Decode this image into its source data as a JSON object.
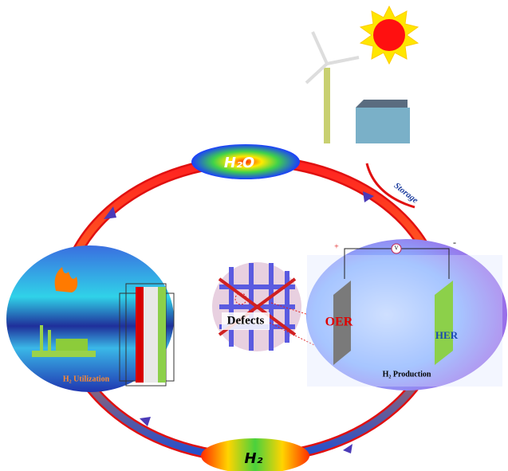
{
  "cycle": {
    "top_node": "H₂O",
    "bottom_node": "H₂",
    "storage": "Storage"
  },
  "utilization": {
    "label": "H₂ Utilization"
  },
  "defects": {
    "label": "Defects"
  },
  "production": {
    "label": "H₂ Production",
    "anode": "OER",
    "cathode": "HER",
    "plus": "+",
    "minus": "-",
    "meter": "V"
  }
}
